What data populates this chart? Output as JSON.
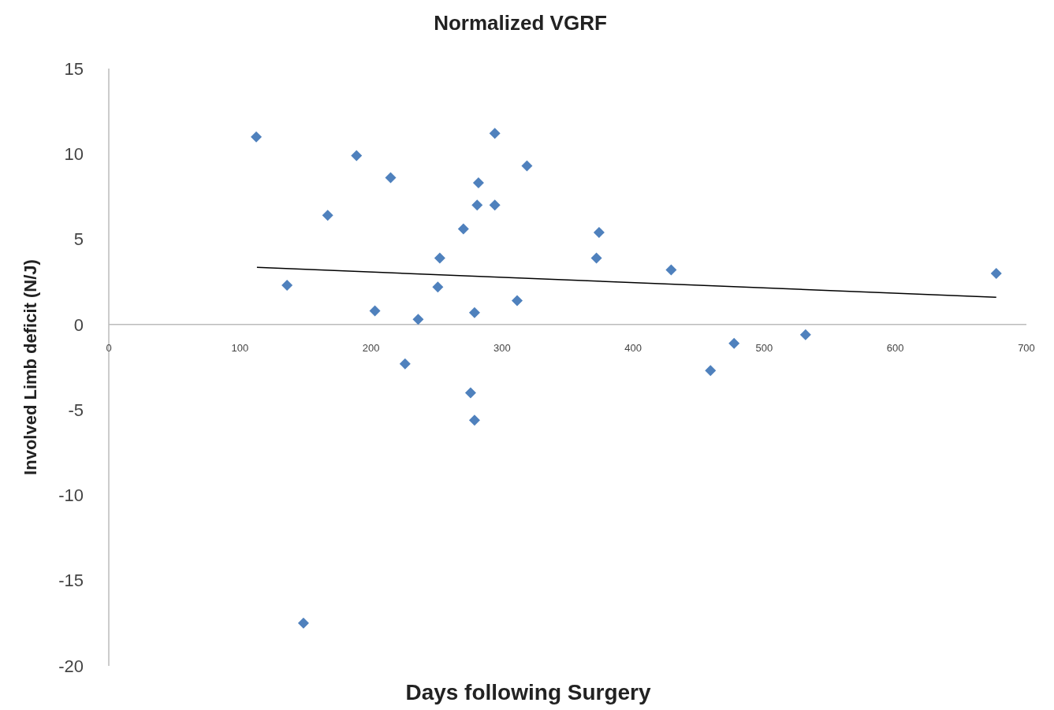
{
  "chart_data": {
    "type": "scatter",
    "title": "Normalized VGRF",
    "xlabel": "Days following Surgery",
    "ylabel": "Involved Limb deficit  (N/J)",
    "xlim": [
      0,
      700
    ],
    "ylim": [
      -20,
      15
    ],
    "xticks": [
      0,
      100,
      200,
      300,
      400,
      500,
      600,
      700
    ],
    "yticks": [
      -20,
      -15,
      -10,
      -5,
      0,
      5,
      10,
      15
    ],
    "marker": "diamond",
    "series": [
      {
        "color": "#4f81bd",
        "x": [
          112.5,
          136,
          148.5,
          167,
          189,
          203,
          215,
          226,
          236,
          251,
          252.5,
          270.5,
          276,
          279,
          279,
          281,
          282,
          294.5,
          294.5,
          311.5,
          319,
          372,
          374,
          429,
          459,
          477,
          531.5,
          677
        ],
        "values": [
          11.0,
          2.3,
          -17.5,
          6.4,
          9.9,
          0.8,
          8.6,
          -2.3,
          0.3,
          2.2,
          3.9,
          5.6,
          -4.0,
          0.7,
          -5.6,
          7.0,
          8.3,
          11.2,
          7.0,
          1.4,
          9.3,
          3.9,
          5.4,
          3.2,
          -2.7,
          -1.1,
          -0.6,
          3.0
        ]
      },
      {
        "type": "line",
        "color": "#000000",
        "marker": "none",
        "line_style": "solid",
        "x": [
          113,
          677
        ],
        "values": [
          3.35,
          1.6
        ]
      }
    ]
  }
}
